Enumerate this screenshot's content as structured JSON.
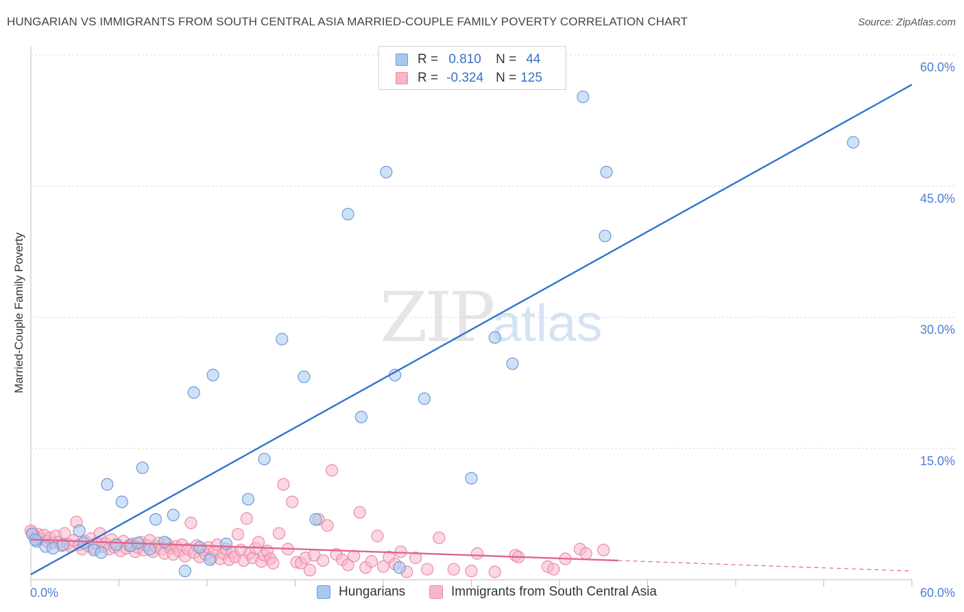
{
  "header": {
    "title": "HUNGARIAN VS IMMIGRANTS FROM SOUTH CENTRAL ASIA MARRIED-COUPLE FAMILY POVERTY CORRELATION CHART",
    "source": "Source: ZipAtlas.com"
  },
  "watermark": {
    "zip": "ZIP",
    "atlas": "atlas"
  },
  "legend": {
    "rows": [
      {
        "r_label": "R =",
        "r_value": "0.810",
        "n_label": "N =",
        "n_value": "44",
        "color": "#a8c8f0"
      },
      {
        "r_label": "R =",
        "r_value": "-0.324",
        "n_label": "N =",
        "n_value": "125",
        "color": "#f7b6c8"
      }
    ]
  },
  "colors": {
    "blue_fill": "#a8c8f0",
    "blue_stroke": "#6b9bd8",
    "blue_line": "#2f72d0",
    "pink_fill": "#f7b6c8",
    "pink_stroke": "#e98aa8",
    "pink_line": "#e0648e",
    "grid": "#d9d9d9",
    "axis_text": "#4a7fd0"
  },
  "chart_data": {
    "type": "scatter",
    "title": "HUNGARIAN VS IMMIGRANTS FROM SOUTH CENTRAL ASIA MARRIED-COUPLE FAMILY POVERTY CORRELATION CHART",
    "xlabel": "",
    "ylabel": "Married-Couple Family Poverty",
    "xlim": [
      0,
      60
    ],
    "ylim": [
      0,
      60
    ],
    "x_tick_labels": [
      "0.0%",
      "60.0%"
    ],
    "y_ticks": [
      15,
      30,
      45,
      60
    ],
    "y_tick_labels": [
      "15.0%",
      "30.0%",
      "45.0%",
      "60.0%"
    ],
    "grid": true,
    "legend_position": "bottom",
    "series": [
      {
        "name": "Hungarians",
        "color": "#a8c8f0",
        "points": [
          [
            0.1,
            5.2
          ],
          [
            0.4,
            4.4
          ],
          [
            1.0,
            3.8
          ],
          [
            1.5,
            3.6
          ],
          [
            2.2,
            4.0
          ],
          [
            3.3,
            5.6
          ],
          [
            3.6,
            4.2
          ],
          [
            4.3,
            3.4
          ],
          [
            4.8,
            3.1
          ],
          [
            5.2,
            10.9
          ],
          [
            5.8,
            4.0
          ],
          [
            6.2,
            8.9
          ],
          [
            6.8,
            3.9
          ],
          [
            7.3,
            4.2
          ],
          [
            7.6,
            12.8
          ],
          [
            8.1,
            3.5
          ],
          [
            8.5,
            6.9
          ],
          [
            9.1,
            4.3
          ],
          [
            9.7,
            7.4
          ],
          [
            10.5,
            1.0
          ],
          [
            11.1,
            21.4
          ],
          [
            11.5,
            3.7
          ],
          [
            12.2,
            2.3
          ],
          [
            12.4,
            23.4
          ],
          [
            13.3,
            4.1
          ],
          [
            14.8,
            9.2
          ],
          [
            15.9,
            13.8
          ],
          [
            17.1,
            27.5
          ],
          [
            18.6,
            23.2
          ],
          [
            19.4,
            6.9
          ],
          [
            21.6,
            41.8
          ],
          [
            22.5,
            18.6
          ],
          [
            24.2,
            46.6
          ],
          [
            24.8,
            23.4
          ],
          [
            25.1,
            1.4
          ],
          [
            26.8,
            20.7
          ],
          [
            30.0,
            11.6
          ],
          [
            31.6,
            27.7
          ],
          [
            32.8,
            24.7
          ],
          [
            37.6,
            55.2
          ],
          [
            39.1,
            39.3
          ],
          [
            39.2,
            46.6
          ],
          [
            56.0,
            50.0
          ],
          [
            0.3,
            4.6
          ]
        ]
      },
      {
        "name": "Immigrants from South Central Asia",
        "color": "#f7b6c8",
        "points": [
          [
            0.1,
            5.4
          ],
          [
            0.3,
            4.9
          ],
          [
            0.5,
            5.2
          ],
          [
            0.7,
            4.6
          ],
          [
            0.9,
            5.1
          ],
          [
            1.1,
            4.4
          ],
          [
            1.3,
            4.8
          ],
          [
            1.5,
            4.2
          ],
          [
            1.7,
            5.0
          ],
          [
            1.9,
            4.3
          ],
          [
            2.1,
            3.9
          ],
          [
            2.3,
            5.3
          ],
          [
            2.5,
            4.1
          ],
          [
            2.7,
            3.8
          ],
          [
            2.9,
            4.5
          ],
          [
            3.1,
            6.6
          ],
          [
            3.3,
            4.0
          ],
          [
            3.5,
            3.5
          ],
          [
            3.7,
            4.4
          ],
          [
            3.9,
            3.9
          ],
          [
            4.1,
            4.7
          ],
          [
            4.3,
            3.6
          ],
          [
            4.5,
            4.2
          ],
          [
            4.7,
            5.3
          ],
          [
            4.9,
            3.8
          ],
          [
            5.1,
            4.1
          ],
          [
            5.3,
            3.5
          ],
          [
            5.5,
            4.6
          ],
          [
            5.7,
            3.7
          ],
          [
            5.9,
            4.0
          ],
          [
            6.1,
            3.3
          ],
          [
            6.3,
            4.4
          ],
          [
            6.5,
            3.6
          ],
          [
            6.7,
            3.9
          ],
          [
            6.9,
            4.1
          ],
          [
            7.1,
            3.2
          ],
          [
            7.3,
            3.7
          ],
          [
            7.5,
            4.3
          ],
          [
            7.7,
            3.4
          ],
          [
            7.9,
            3.9
          ],
          [
            8.1,
            4.5
          ],
          [
            8.3,
            3.2
          ],
          [
            8.5,
            3.8
          ],
          [
            8.7,
            4.2
          ],
          [
            8.9,
            3.5
          ],
          [
            9.1,
            3.0
          ],
          [
            9.3,
            4.1
          ],
          [
            9.5,
            3.6
          ],
          [
            9.7,
            2.9
          ],
          [
            9.9,
            3.8
          ],
          [
            10.1,
            3.3
          ],
          [
            10.3,
            4.0
          ],
          [
            10.5,
            2.7
          ],
          [
            10.7,
            3.5
          ],
          [
            10.9,
            6.5
          ],
          [
            11.1,
            3.1
          ],
          [
            11.3,
            3.9
          ],
          [
            11.5,
            2.6
          ],
          [
            11.7,
            3.4
          ],
          [
            11.9,
            2.9
          ],
          [
            12.1,
            3.7
          ],
          [
            12.3,
            2.5
          ],
          [
            12.5,
            3.2
          ],
          [
            12.7,
            4.0
          ],
          [
            12.9,
            2.4
          ],
          [
            13.1,
            3.0
          ],
          [
            13.3,
            3.5
          ],
          [
            13.5,
            2.3
          ],
          [
            13.7,
            3.1
          ],
          [
            13.9,
            2.6
          ],
          [
            14.1,
            5.2
          ],
          [
            14.3,
            3.4
          ],
          [
            14.5,
            2.2
          ],
          [
            14.7,
            7.0
          ],
          [
            14.9,
            3.0
          ],
          [
            15.1,
            2.5
          ],
          [
            15.3,
            3.6
          ],
          [
            15.5,
            4.3
          ],
          [
            15.7,
            2.1
          ],
          [
            15.9,
            2.8
          ],
          [
            16.1,
            3.3
          ],
          [
            16.3,
            2.4
          ],
          [
            16.5,
            1.9
          ],
          [
            16.9,
            5.3
          ],
          [
            17.2,
            10.9
          ],
          [
            17.5,
            3.5
          ],
          [
            17.8,
            8.9
          ],
          [
            18.1,
            2.0
          ],
          [
            18.4,
            1.9
          ],
          [
            18.7,
            2.5
          ],
          [
            19.0,
            1.1
          ],
          [
            19.3,
            2.8
          ],
          [
            19.6,
            6.9
          ],
          [
            19.9,
            2.2
          ],
          [
            20.2,
            6.2
          ],
          [
            20.5,
            12.5
          ],
          [
            20.8,
            2.9
          ],
          [
            21.2,
            2.3
          ],
          [
            21.6,
            1.7
          ],
          [
            22.0,
            2.7
          ],
          [
            22.4,
            7.7
          ],
          [
            22.8,
            1.4
          ],
          [
            23.2,
            2.1
          ],
          [
            23.6,
            5.0
          ],
          [
            24.0,
            1.5
          ],
          [
            24.4,
            2.6
          ],
          [
            24.8,
            1.8
          ],
          [
            25.2,
            3.2
          ],
          [
            25.6,
            0.9
          ],
          [
            26.2,
            2.5
          ],
          [
            27.0,
            1.2
          ],
          [
            27.8,
            4.8
          ],
          [
            28.8,
            1.2
          ],
          [
            30.0,
            1.0
          ],
          [
            30.4,
            3.0
          ],
          [
            31.6,
            0.9
          ],
          [
            33.0,
            2.8
          ],
          [
            33.2,
            2.6
          ],
          [
            35.2,
            1.5
          ],
          [
            35.6,
            1.2
          ],
          [
            36.4,
            2.4
          ],
          [
            37.4,
            3.5
          ],
          [
            37.8,
            3.0
          ],
          [
            39.0,
            3.4
          ],
          [
            0.0,
            5.6
          ]
        ]
      }
    ],
    "trend_lines": [
      {
        "series": "Hungarians",
        "x": [
          0,
          60
        ],
        "y": [
          0.6,
          56.6
        ],
        "style": "solid"
      },
      {
        "series": "Immigrants from South Central Asia",
        "x": [
          0,
          40
        ],
        "y": [
          4.6,
          2.2
        ],
        "style": "solid"
      },
      {
        "series": "Immigrants from South Central Asia",
        "x": [
          40,
          60
        ],
        "y": [
          2.2,
          1.0
        ],
        "style": "dashed"
      }
    ]
  },
  "bottom_legend": {
    "items": [
      {
        "label": "Hungarians",
        "color": "#a8c8f0"
      },
      {
        "label": "Immigrants from South Central Asia",
        "color": "#f7b6c8"
      }
    ]
  }
}
